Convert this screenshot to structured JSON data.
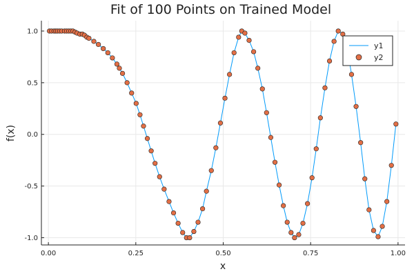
{
  "chart_data": {
    "type": "line",
    "title": "Fit of 100 Points on Trained Model",
    "xlabel": "x",
    "ylabel": "f(x)",
    "xlim": [
      -0.02,
      1.02
    ],
    "ylim": [
      -1.07,
      1.1
    ],
    "x_ticks": [
      0.0,
      0.25,
      0.5,
      0.75,
      1.0
    ],
    "x_tick_labels": [
      "0.00",
      "0.25",
      "0.50",
      "0.75",
      "1.00"
    ],
    "y_ticks": [
      -1.0,
      -0.5,
      0.0,
      0.5,
      1.0
    ],
    "y_tick_labels": [
      "-1.0",
      "-0.5",
      "0.0",
      "0.5",
      "1.0"
    ],
    "grid": true,
    "legend_position": "top-right",
    "colors": {
      "y1": "#009AFA",
      "y2": "#E26F46"
    },
    "series": [
      {
        "name": "y1",
        "type": "line",
        "x": [
          0.003,
          0.009,
          0.016,
          0.021,
          0.026,
          0.032,
          0.038,
          0.046,
          0.052,
          0.058,
          0.064,
          0.07,
          0.076,
          0.082,
          0.09,
          0.097,
          0.103,
          0.11,
          0.116,
          0.13,
          0.143,
          0.157,
          0.17,
          0.183,
          0.196,
          0.203,
          0.212,
          0.225,
          0.238,
          0.251,
          0.262,
          0.272,
          0.283,
          0.294,
          0.305,
          0.318,
          0.331,
          0.345,
          0.358,
          0.371,
          0.384,
          0.395,
          0.404,
          0.416,
          0.428,
          0.441,
          0.452,
          0.466,
          0.479,
          0.492,
          0.505,
          0.518,
          0.531,
          0.544,
          0.553,
          0.562,
          0.574,
          0.587,
          0.599,
          0.612,
          0.624,
          0.636,
          0.648,
          0.66,
          0.672,
          0.683,
          0.694,
          0.704,
          0.716,
          0.728,
          0.741,
          0.754,
          0.766,
          0.778,
          0.791,
          0.804,
          0.817,
          0.829,
          0.842,
          0.855,
          0.867,
          0.88,
          0.893,
          0.905,
          0.917,
          0.93,
          0.943,
          0.955,
          0.968,
          0.981,
          0.994
        ],
        "y": [
          1.0,
          1.0,
          1.0,
          1.0,
          1.0,
          1.0,
          1.0,
          1.0,
          1.0,
          1.0,
          1.0,
          1.0,
          0.99,
          0.98,
          0.97,
          0.97,
          0.96,
          0.94,
          0.93,
          0.9,
          0.87,
          0.83,
          0.79,
          0.74,
          0.68,
          0.64,
          0.59,
          0.5,
          0.4,
          0.3,
          0.19,
          0.08,
          -0.04,
          -0.16,
          -0.28,
          -0.41,
          -0.53,
          -0.65,
          -0.76,
          -0.86,
          -0.95,
          -1.0,
          -1.0,
          -0.94,
          -0.85,
          -0.72,
          -0.55,
          -0.35,
          -0.13,
          0.11,
          0.35,
          0.58,
          0.79,
          0.94,
          1.0,
          0.98,
          0.91,
          0.8,
          0.64,
          0.44,
          0.21,
          -0.03,
          -0.27,
          -0.49,
          -0.69,
          -0.85,
          -0.95,
          -1.0,
          -0.97,
          -0.86,
          -0.67,
          -0.42,
          -0.14,
          0.16,
          0.45,
          0.71,
          0.9,
          1.0,
          0.97,
          0.83,
          0.58,
          0.27,
          -0.08,
          -0.43,
          -0.73,
          -0.93,
          -0.99,
          -0.89,
          -0.65,
          -0.3,
          0.1
        ]
      },
      {
        "name": "y2",
        "type": "scatter",
        "x": [
          0.003,
          0.009,
          0.016,
          0.021,
          0.026,
          0.032,
          0.038,
          0.046,
          0.052,
          0.058,
          0.064,
          0.07,
          0.076,
          0.082,
          0.09,
          0.097,
          0.103,
          0.11,
          0.116,
          0.13,
          0.143,
          0.157,
          0.17,
          0.183,
          0.196,
          0.203,
          0.212,
          0.225,
          0.238,
          0.251,
          0.262,
          0.272,
          0.283,
          0.294,
          0.305,
          0.318,
          0.331,
          0.345,
          0.358,
          0.371,
          0.384,
          0.395,
          0.404,
          0.416,
          0.428,
          0.441,
          0.452,
          0.466,
          0.479,
          0.492,
          0.505,
          0.518,
          0.531,
          0.544,
          0.553,
          0.562,
          0.574,
          0.587,
          0.599,
          0.612,
          0.624,
          0.636,
          0.648,
          0.66,
          0.672,
          0.683,
          0.694,
          0.704,
          0.716,
          0.728,
          0.741,
          0.754,
          0.766,
          0.778,
          0.791,
          0.804,
          0.817,
          0.829,
          0.842,
          0.855,
          0.867,
          0.88,
          0.893,
          0.905,
          0.917,
          0.93,
          0.943,
          0.955,
          0.968,
          0.981,
          0.994
        ],
        "y": [
          1.0,
          1.0,
          1.0,
          1.0,
          1.0,
          1.0,
          1.0,
          1.0,
          1.0,
          1.0,
          1.0,
          1.0,
          0.99,
          0.98,
          0.97,
          0.97,
          0.96,
          0.94,
          0.93,
          0.9,
          0.87,
          0.83,
          0.79,
          0.74,
          0.68,
          0.64,
          0.59,
          0.5,
          0.4,
          0.3,
          0.19,
          0.08,
          -0.04,
          -0.16,
          -0.28,
          -0.41,
          -0.53,
          -0.65,
          -0.76,
          -0.86,
          -0.95,
          -1.0,
          -1.0,
          -0.94,
          -0.85,
          -0.72,
          -0.55,
          -0.35,
          -0.13,
          0.11,
          0.35,
          0.58,
          0.79,
          0.94,
          1.0,
          0.98,
          0.91,
          0.8,
          0.64,
          0.44,
          0.21,
          -0.03,
          -0.27,
          -0.49,
          -0.69,
          -0.85,
          -0.95,
          -1.0,
          -0.97,
          -0.86,
          -0.67,
          -0.42,
          -0.14,
          0.16,
          0.45,
          0.71,
          0.9,
          1.0,
          0.97,
          0.83,
          0.58,
          0.27,
          -0.08,
          -0.43,
          -0.73,
          -0.93,
          -0.99,
          -0.89,
          -0.65,
          -0.3,
          0.1
        ]
      }
    ]
  }
}
